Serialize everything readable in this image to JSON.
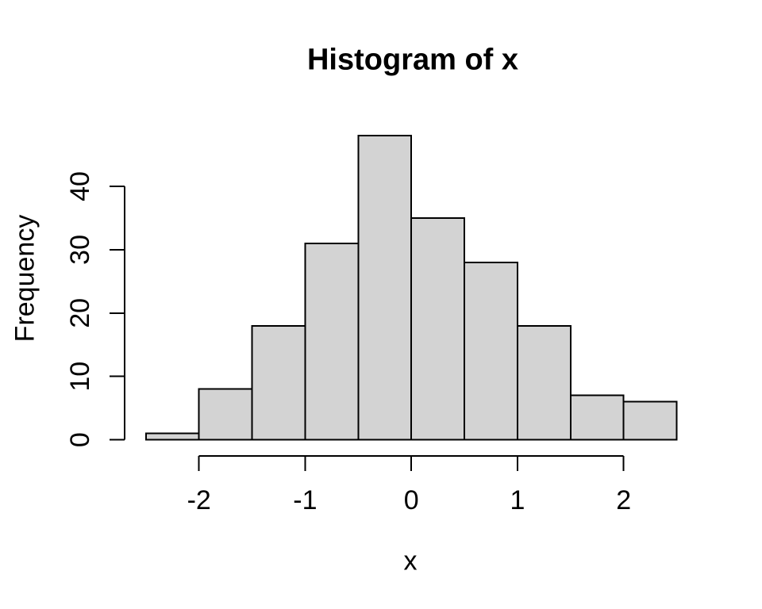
{
  "chart_data": {
    "type": "histogram",
    "title": "Histogram of x",
    "xlabel": "x",
    "ylabel": "Frequency",
    "breaks": [
      -2.5,
      -2.0,
      -1.5,
      -1.0,
      -0.5,
      0.0,
      0.5,
      1.0,
      1.5,
      2.0,
      2.5
    ],
    "counts": [
      1,
      8,
      18,
      31,
      48,
      35,
      28,
      18,
      7,
      6
    ],
    "bin_width": 0.5,
    "x_ticks": [
      -2,
      -1,
      0,
      1,
      2
    ],
    "y_ticks": [
      0,
      10,
      20,
      30,
      40
    ],
    "xlim": [
      -2.5,
      2.5
    ],
    "ylim": [
      0,
      48
    ],
    "grid": false,
    "legend": "none",
    "colors": {
      "bar_fill": "#D3D3D3",
      "bar_border": "#000000",
      "axis": "#000000",
      "text": "#000000",
      "background": "#FFFFFF"
    }
  }
}
